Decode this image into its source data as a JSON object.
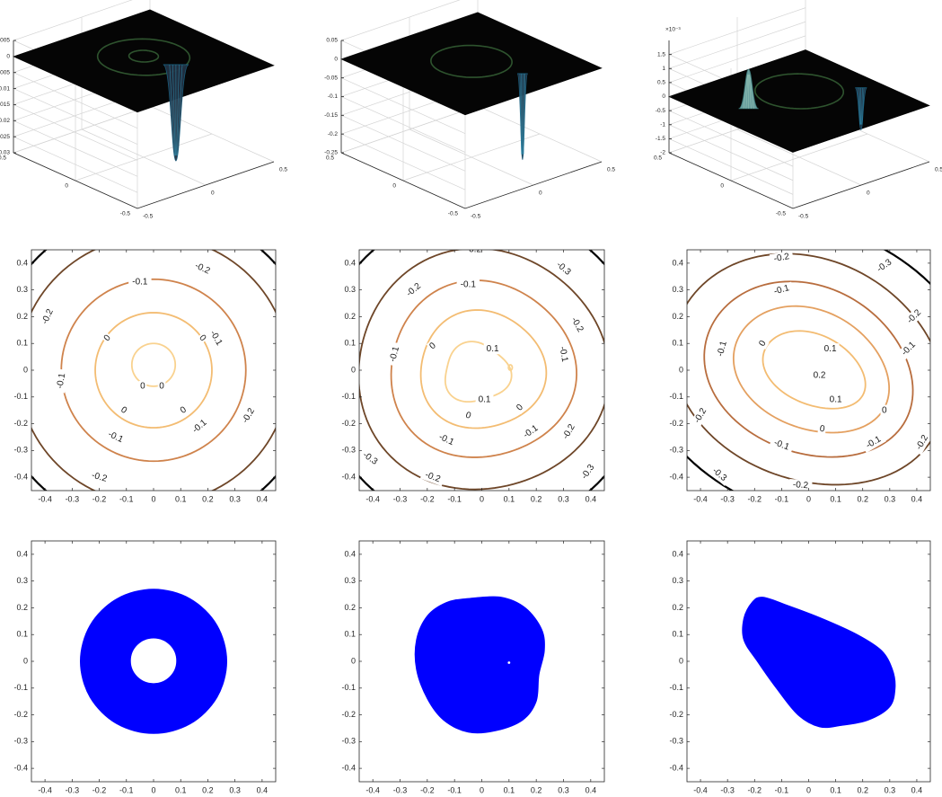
{
  "chart_data": [
    {
      "type": "surface",
      "panel": "top-left",
      "x": {
        "lim": [
          -0.5,
          0.5
        ],
        "ticks": [
          "-0.5",
          "0",
          "0.5"
        ]
      },
      "y": {
        "lim": [
          -0.5,
          0.5
        ],
        "ticks": [
          "-0.5",
          "0",
          "0.5"
        ]
      },
      "z": {
        "lim": [
          -0.03,
          0.005
        ],
        "ticks": [
          "0.005",
          "0",
          "-0.005",
          "-0.01",
          "-0.015",
          "-0.02",
          "-0.025",
          "-0.03"
        ],
        "exponent": ""
      },
      "features": [
        {
          "kind": "spike",
          "x": 0.1,
          "y": -0.15,
          "z": -0.03,
          "width": 0.08
        },
        {
          "kind": "ring",
          "r": 0.08,
          "amp": 0.0015
        },
        {
          "kind": "ring",
          "r": 0.25,
          "amp": 0.0012
        }
      ],
      "grid": true
    },
    {
      "type": "surface",
      "panel": "top-middle",
      "x": {
        "lim": [
          -0.5,
          0.5
        ],
        "ticks": [
          "-0.5",
          "0",
          "0.5"
        ]
      },
      "y": {
        "lim": [
          -0.5,
          0.5
        ],
        "ticks": [
          "-0.5",
          "0",
          "0.5"
        ]
      },
      "z": {
        "lim": [
          -0.25,
          0.05
        ],
        "ticks": [
          "0.05",
          "0",
          "-0.05",
          "-0.1",
          "-0.15",
          "-0.2",
          "-0.25"
        ],
        "exponent": ""
      },
      "features": [
        {
          "kind": "spike",
          "x": 0.12,
          "y": -0.28,
          "z": -0.23,
          "width": 0.025
        },
        {
          "kind": "ring",
          "r": 0.22,
          "amp": 0.006
        }
      ],
      "grid": true
    },
    {
      "type": "surface",
      "panel": "top-right",
      "x": {
        "lim": [
          -0.5,
          0.5
        ],
        "ticks": [
          "-0.5",
          "0",
          "0.5"
        ]
      },
      "y": {
        "lim": [
          -0.5,
          0.5
        ],
        "ticks": [
          "-0.5",
          "0",
          "0.5"
        ]
      },
      "z": {
        "lim": [
          -2,
          2
        ],
        "ticks": [
          "1.5",
          "1",
          "0.5",
          "0",
          "-0.5",
          "-1",
          "-1.5",
          "-2"
        ],
        "exponent": "×10⁻³"
      },
      "features": [
        {
          "kind": "bump",
          "x": -0.28,
          "y": 0.1,
          "z": 1.4,
          "width": 0.06
        },
        {
          "kind": "spike",
          "x": 0.38,
          "y": -0.08,
          "z": -1.5,
          "width": 0.03
        },
        {
          "kind": "ring",
          "r": 0.24,
          "amp": 0.35
        }
      ],
      "grid": true
    },
    {
      "type": "contour",
      "panel": "middle-left",
      "xlim": [
        -0.45,
        0.45
      ],
      "ylim": [
        -0.45,
        0.45
      ],
      "xticks": [
        "-0.4",
        "-0.3",
        "-0.2",
        "-0.1",
        "0",
        "0.1",
        "0.2",
        "0.3",
        "0.4"
      ],
      "yticks": [
        "0.4",
        "0.3",
        "0.2",
        "0.1",
        "0",
        "-0.1",
        "-0.2",
        "-0.3",
        "-0.4"
      ],
      "levels": [
        {
          "value": "0",
          "color": "#f9d28f",
          "paths": [
            {
              "cx": 0,
              "cy": 0.02,
              "rx": 0.08,
              "ry": 0.08,
              "rot": 0,
              "d": 0
            }
          ]
        },
        {
          "value": "0",
          "color": "#f3bc72",
          "paths": [
            {
              "cx": 0,
              "cy": 0,
              "rx": 0.215,
              "ry": 0.215,
              "rot": 0,
              "d": 0
            }
          ]
        },
        {
          "value": "-0.1",
          "color": "#cf834c",
          "paths": [
            {
              "cx": 0,
              "cy": 0,
              "rx": 0.34,
              "ry": 0.34,
              "rot": 0,
              "d": 0
            }
          ]
        },
        {
          "value": "-0.2",
          "color": "#6e4628",
          "paths": [
            {
              "cx": 0,
              "cy": 0,
              "rx": 0.5,
              "ry": 0.5,
              "rot": 0,
              "d": 0
            }
          ]
        },
        {
          "value": "",
          "color": "#000000",
          "paths": [
            {
              "cx": 0,
              "cy": 0,
              "rx": 0.6,
              "ry": 0.6,
              "rot": 0,
              "d": 0
            }
          ]
        }
      ],
      "labels": [
        {
          "text": "0",
          "x": -0.04,
          "y": -0.06,
          "angle": 0
        },
        {
          "text": "0",
          "x": 0.03,
          "y": -0.06,
          "angle": 0
        },
        {
          "text": "0",
          "x": -0.17,
          "y": 0.12,
          "angle": -50
        },
        {
          "text": "0",
          "x": 0.18,
          "y": 0.12,
          "angle": 50
        },
        {
          "text": "0",
          "x": -0.11,
          "y": -0.15,
          "angle": 35
        },
        {
          "text": "0",
          "x": 0.11,
          "y": -0.15,
          "angle": -35
        },
        {
          "text": "-0.1",
          "x": -0.05,
          "y": 0.33,
          "angle": 0
        },
        {
          "text": "-0.1",
          "x": 0.23,
          "y": 0.12,
          "angle": 60
        },
        {
          "text": "-0.1",
          "x": -0.34,
          "y": -0.04,
          "angle": -80
        },
        {
          "text": "-0.1",
          "x": 0.17,
          "y": -0.21,
          "angle": -40
        },
        {
          "text": "-0.1",
          "x": -0.14,
          "y": -0.25,
          "angle": 25
        },
        {
          "text": "-0.2",
          "x": 0.18,
          "y": 0.38,
          "angle": 25
        },
        {
          "text": "-0.2",
          "x": -0.39,
          "y": 0.2,
          "angle": -65
        },
        {
          "text": "-0.2",
          "x": 0.35,
          "y": -0.17,
          "angle": -60
        },
        {
          "text": "-0.2",
          "x": -0.2,
          "y": -0.4,
          "angle": 15
        }
      ]
    },
    {
      "type": "contour",
      "panel": "middle-center",
      "xlim": [
        -0.45,
        0.45
      ],
      "ylim": [
        -0.45,
        0.45
      ],
      "xticks": [
        "-0.4",
        "-0.3",
        "-0.2",
        "-0.1",
        "0",
        "0.1",
        "0.2",
        "0.3",
        "0.4"
      ],
      "yticks": [
        "0.4",
        "0.3",
        "0.2",
        "0.1",
        "0",
        "-0.1",
        "-0.2",
        "-0.3",
        "-0.4"
      ],
      "levels": [
        {
          "value": "0.1",
          "color": "#f9d28f",
          "paths": [
            {
              "cx": -0.02,
              "cy": -0.01,
              "rx": 0.12,
              "ry": 0.11,
              "rot": 0,
              "d": 0.25
            }
          ]
        },
        {
          "value": "0.1",
          "color": "#f9d28f",
          "paths": [
            {
              "cx": 0.105,
              "cy": 0.01,
              "rx": 0.007,
              "ry": 0.01,
              "rot": 0,
              "d": 0
            }
          ]
        },
        {
          "value": "0",
          "color": "#f3bc72",
          "paths": [
            {
              "cx": 0,
              "cy": 0,
              "rx": 0.23,
              "ry": 0.22,
              "rot": 0,
              "d": 0.1
            }
          ]
        },
        {
          "value": "-0.1",
          "color": "#cf834c",
          "paths": [
            {
              "cx": 0,
              "cy": 0,
              "rx": 0.34,
              "ry": 0.33,
              "rot": 0,
              "d": 0.08
            }
          ]
        },
        {
          "value": "-0.2",
          "color": "#6e4628",
          "paths": [
            {
              "cx": 0,
              "cy": 0,
              "rx": 0.46,
              "ry": 0.45,
              "rot": 0,
              "d": 0.06
            }
          ]
        },
        {
          "value": "-0.3",
          "color": "#000000",
          "paths": [
            {
              "cx": 0,
              "cy": 0,
              "rx": 0.6,
              "ry": 0.6,
              "rot": 0,
              "d": 0
            }
          ]
        }
      ],
      "labels": [
        {
          "text": "0.1",
          "x": 0.04,
          "y": 0.08,
          "angle": 0
        },
        {
          "text": "0.1",
          "x": 0.01,
          "y": -0.11,
          "angle": 0
        },
        {
          "text": "0",
          "x": -0.18,
          "y": 0.09,
          "angle": -40
        },
        {
          "text": "0",
          "x": -0.05,
          "y": -0.17,
          "angle": 20
        },
        {
          "text": "0",
          "x": 0.14,
          "y": -0.14,
          "angle": -45
        },
        {
          "text": "-0.1",
          "x": -0.05,
          "y": 0.32,
          "angle": 0
        },
        {
          "text": "-0.1",
          "x": -0.32,
          "y": 0.06,
          "angle": -75
        },
        {
          "text": "-0.1",
          "x": 0.3,
          "y": 0.06,
          "angle": 80
        },
        {
          "text": "-0.1",
          "x": -0.13,
          "y": -0.26,
          "angle": 25
        },
        {
          "text": "-0.1",
          "x": 0.18,
          "y": -0.23,
          "angle": -35
        },
        {
          "text": "-0.2",
          "x": -0.25,
          "y": 0.3,
          "angle": -40
        },
        {
          "text": "-0.2",
          "x": -0.03,
          "y": 0.45,
          "angle": 0
        },
        {
          "text": "-0.2",
          "x": 0.35,
          "y": 0.17,
          "angle": 60
        },
        {
          "text": "-0.2",
          "x": 0.32,
          "y": -0.23,
          "angle": -60
        },
        {
          "text": "-0.2",
          "x": -0.18,
          "y": -0.4,
          "angle": 20
        },
        {
          "text": "-0.3",
          "x": 0.3,
          "y": 0.38,
          "angle": 40
        },
        {
          "text": "-0.3",
          "x": -0.41,
          "y": -0.33,
          "angle": 35
        },
        {
          "text": "-0.3",
          "x": 0.39,
          "y": -0.38,
          "angle": -55
        }
      ]
    },
    {
      "type": "contour",
      "panel": "middle-right",
      "xlim": [
        -0.45,
        0.45
      ],
      "ylim": [
        -0.45,
        0.45
      ],
      "xticks": [
        "-0.4",
        "-0.3",
        "-0.2",
        "-0.1",
        "0",
        "0.1",
        "0.2",
        "0.3",
        "0.4"
      ],
      "yticks": [
        "0.4",
        "0.3",
        "0.2",
        "0.1",
        "0",
        "-0.1",
        "-0.2",
        "-0.3",
        "-0.4"
      ],
      "levels": [
        {
          "value": "0.2",
          "color": "#f9d28f",
          "paths": [
            {
              "cx": 0.045,
              "cy": -0.03,
              "rx": 0.025,
              "ry": 0.006,
              "rot": 0,
              "d": 0
            }
          ]
        },
        {
          "value": "0.1",
          "color": "#f3bc72",
          "paths": [
            {
              "cx": 0.02,
              "cy": 0.0,
              "rx": 0.2,
              "ry": 0.13,
              "rot": -25,
              "d": 0.05
            }
          ]
        },
        {
          "value": "0",
          "color": "#e4a060",
          "paths": [
            {
              "cx": 0.01,
              "cy": 0.0,
              "rx": 0.3,
              "ry": 0.22,
              "rot": -25,
              "d": 0.05
            }
          ]
        },
        {
          "value": "-0.1",
          "color": "#b86d3e",
          "paths": [
            {
              "cx": 0.0,
              "cy": 0.0,
              "rx": 0.4,
              "ry": 0.31,
              "rot": -25,
              "d": 0.04
            }
          ]
        },
        {
          "value": "-0.2",
          "color": "#6e4628",
          "paths": [
            {
              "cx": 0.0,
              "cy": 0.0,
              "rx": 0.52,
              "ry": 0.41,
              "rot": -25,
              "d": 0.03
            }
          ]
        },
        {
          "value": "-0.3",
          "color": "#000000",
          "paths": [
            {
              "cx": 0.0,
              "cy": 0.0,
              "rx": 0.66,
              "ry": 0.53,
              "rot": -25,
              "d": 0
            }
          ]
        }
      ],
      "labels": [
        {
          "text": "0.2",
          "x": 0.04,
          "y": -0.02,
          "angle": 0
        },
        {
          "text": "0.1",
          "x": 0.08,
          "y": 0.08,
          "angle": 0
        },
        {
          "text": "0.1",
          "x": 0.1,
          "y": -0.11,
          "angle": 0
        },
        {
          "text": "0",
          "x": -0.17,
          "y": 0.1,
          "angle": -60
        },
        {
          "text": "0",
          "x": 0.28,
          "y": -0.15,
          "angle": 0
        },
        {
          "text": "0",
          "x": 0.05,
          "y": -0.22,
          "angle": 10
        },
        {
          "text": "-0.1",
          "x": -0.1,
          "y": 0.3,
          "angle": -15
        },
        {
          "text": "-0.1",
          "x": 0.37,
          "y": 0.08,
          "angle": -45
        },
        {
          "text": "-0.1",
          "x": -0.32,
          "y": 0.08,
          "angle": -75
        },
        {
          "text": "-0.1",
          "x": -0.1,
          "y": -0.28,
          "angle": 20
        },
        {
          "text": "-0.1",
          "x": 0.24,
          "y": -0.27,
          "angle": -30
        },
        {
          "text": "-0.2",
          "x": -0.1,
          "y": 0.42,
          "angle": -10
        },
        {
          "text": "-0.2",
          "x": 0.39,
          "y": 0.2,
          "angle": -45
        },
        {
          "text": "-0.2",
          "x": -0.4,
          "y": -0.17,
          "angle": -60
        },
        {
          "text": "-0.2",
          "x": 0.42,
          "y": -0.27,
          "angle": -60
        },
        {
          "text": "-0.2",
          "x": -0.03,
          "y": -0.43,
          "angle": 5
        },
        {
          "text": "-0.3",
          "x": 0.28,
          "y": 0.39,
          "angle": -35
        },
        {
          "text": "-0.3",
          "x": -0.33,
          "y": -0.39,
          "angle": 40
        }
      ]
    },
    {
      "type": "region",
      "panel": "bottom-left",
      "xlim": [
        -0.45,
        0.45
      ],
      "ylim": [
        -0.45,
        0.45
      ],
      "xticks": [
        "-0.4",
        "-0.3",
        "-0.2",
        "-0.1",
        "0",
        "0.1",
        "0.2",
        "0.3",
        "0.4"
      ],
      "yticks": [
        "0.4",
        "0.3",
        "0.2",
        "0.1",
        "0",
        "-0.1",
        "-0.2",
        "-0.3",
        "-0.4"
      ],
      "color": "#0000ff",
      "outer": [
        [
          0,
          0.27
        ],
        [
          0.135,
          0.234
        ],
        [
          0.234,
          0.135
        ],
        [
          0.27,
          0
        ],
        [
          0.234,
          -0.135
        ],
        [
          0.135,
          -0.234
        ],
        [
          0,
          -0.27
        ],
        [
          -0.135,
          -0.234
        ],
        [
          -0.234,
          -0.135
        ],
        [
          -0.27,
          0
        ],
        [
          -0.234,
          0.135
        ],
        [
          -0.135,
          0.234
        ]
      ],
      "holes": [
        {
          "cx": 0.0,
          "cy": 0.002,
          "r": 0.085
        }
      ]
    },
    {
      "type": "region",
      "panel": "bottom-center",
      "xlim": [
        -0.45,
        0.45
      ],
      "ylim": [
        -0.45,
        0.45
      ],
      "xticks": [
        "-0.4",
        "-0.3",
        "-0.2",
        "-0.1",
        "0",
        "0.1",
        "0.2",
        "0.3",
        "0.4"
      ],
      "yticks": [
        "0.4",
        "0.3",
        "0.2",
        "0.1",
        "0",
        "-0.1",
        "-0.2",
        "-0.3",
        "-0.4"
      ],
      "color": "#0000ff",
      "outer": [
        [
          -0.05,
          0.235
        ],
        [
          0.07,
          0.24
        ],
        [
          0.16,
          0.2
        ],
        [
          0.22,
          0.12
        ],
        [
          0.23,
          0.04
        ],
        [
          0.21,
          -0.05
        ],
        [
          0.2,
          -0.15
        ],
        [
          0.15,
          -0.22
        ],
        [
          0.05,
          -0.26
        ],
        [
          -0.05,
          -0.265
        ],
        [
          -0.14,
          -0.22
        ],
        [
          -0.2,
          -0.14
        ],
        [
          -0.24,
          -0.03
        ],
        [
          -0.24,
          0.08
        ],
        [
          -0.2,
          0.17
        ],
        [
          -0.13,
          0.22
        ]
      ],
      "holes": [
        {
          "cx": 0.1,
          "cy": -0.005,
          "r": 0.006
        }
      ]
    },
    {
      "type": "region",
      "panel": "bottom-right",
      "xlim": [
        -0.45,
        0.45
      ],
      "ylim": [
        -0.45,
        0.45
      ],
      "xticks": [
        "-0.4",
        "-0.3",
        "-0.2",
        "-0.1",
        "0",
        "0.1",
        "0.2",
        "0.3",
        "0.4"
      ],
      "yticks": [
        "0.4",
        "0.3",
        "0.2",
        "0.1",
        "0",
        "-0.1",
        "-0.2",
        "-0.3",
        "-0.4"
      ],
      "color": "#0000ff",
      "outer": [
        [
          -0.17,
          0.24
        ],
        [
          -0.08,
          0.21
        ],
        [
          0.05,
          0.16
        ],
        [
          0.18,
          0.1
        ],
        [
          0.27,
          0.04
        ],
        [
          0.31,
          -0.03
        ],
        [
          0.32,
          -0.1
        ],
        [
          0.3,
          -0.17
        ],
        [
          0.22,
          -0.22
        ],
        [
          0.12,
          -0.24
        ],
        [
          0.04,
          -0.245
        ],
        [
          -0.04,
          -0.2
        ],
        [
          -0.12,
          -0.1
        ],
        [
          -0.19,
          0.0
        ],
        [
          -0.24,
          0.08
        ],
        [
          -0.24,
          0.16
        ],
        [
          -0.21,
          0.22
        ]
      ],
      "holes": []
    }
  ]
}
